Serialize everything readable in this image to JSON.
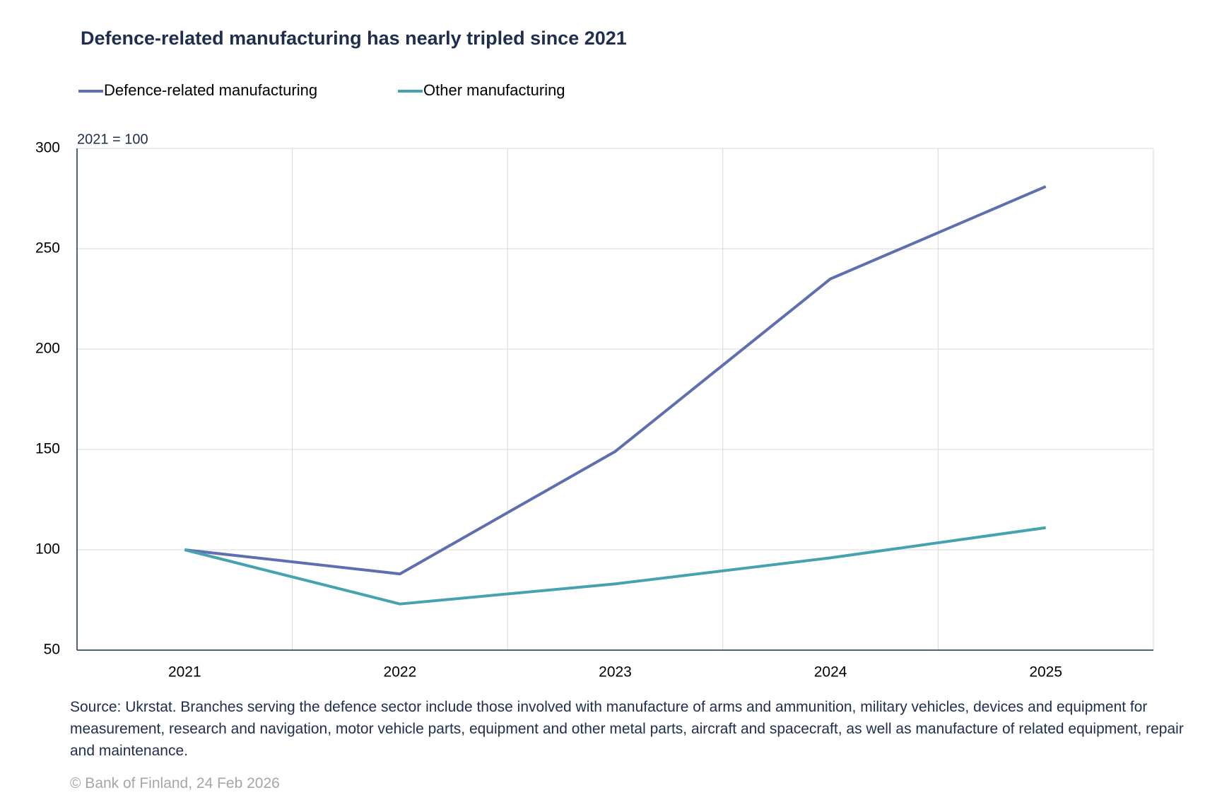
{
  "chart_data": {
    "type": "line",
    "title": "Defence-related manufacturing has nearly tripled since 2021",
    "unit_label": "2021 = 100",
    "categories": [
      "2021",
      "2022",
      "2023",
      "2024",
      "2025"
    ],
    "series": [
      {
        "name": "Defence-related manufacturing",
        "color": "#5f6eaf",
        "values": [
          100,
          88,
          149,
          235,
          281
        ]
      },
      {
        "name": "Other manufacturing",
        "color": "#45a3b0",
        "values": [
          100,
          73,
          83,
          96,
          111
        ]
      }
    ],
    "ylim": [
      50,
      300
    ],
    "yticks": [
      50,
      100,
      150,
      200,
      250,
      300
    ],
    "grid": true,
    "note": "Source: Ukrstat. Branches serving the defence sector include those involved with manufacture of arms and ammunition, military vehicles, devices and equipment for measurement, research and navigation, motor vehicle parts, equipment and other metal parts, aircraft and spacecraft, as well as manufacture of related equipment, repair and maintenance.",
    "copyright": "© Bank of Finland, 24 Feb 2026"
  }
}
